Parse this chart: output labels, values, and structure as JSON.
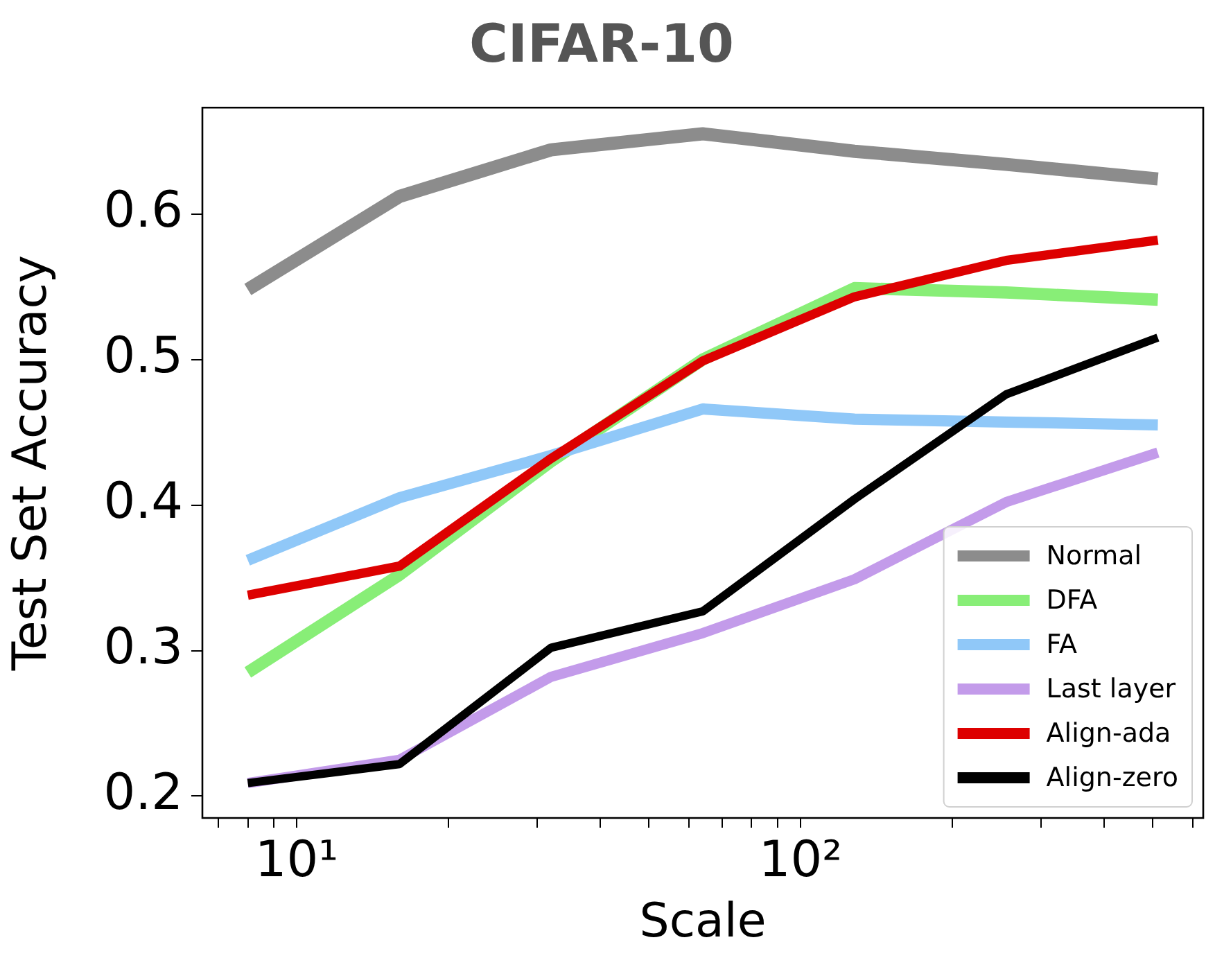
{
  "chart_data": {
    "type": "line",
    "title": "CIFAR-10",
    "xlabel": "Scale",
    "ylabel": "Test Set Accuracy",
    "x": [
      8,
      16,
      32,
      64,
      128,
      256,
      512
    ],
    "series": [
      {
        "name": "Normal",
        "color": "#8c8c8c",
        "values": [
          0.548,
          0.612,
          0.644,
          0.655,
          0.643,
          0.634,
          0.624
        ]
      },
      {
        "name": "DFA",
        "color": "#88ee77",
        "values": [
          0.285,
          0.352,
          0.43,
          0.5,
          0.549,
          0.546,
          0.541
        ]
      },
      {
        "name": "FA",
        "color": "#90c8f8",
        "values": [
          0.362,
          0.405,
          0.434,
          0.466,
          0.459,
          0.457,
          0.455
        ]
      },
      {
        "name": "Last layer",
        "color": "#c39bea",
        "values": [
          0.209,
          0.225,
          0.282,
          0.312,
          0.349,
          0.402,
          0.436
        ]
      },
      {
        "name": "Align-ada",
        "color": "#dd0000",
        "values": [
          0.338,
          0.358,
          0.432,
          0.499,
          0.543,
          0.568,
          0.582
        ]
      },
      {
        "name": "Align-zero",
        "color": "#000000",
        "values": [
          0.209,
          0.222,
          0.302,
          0.327,
          0.404,
          0.476,
          0.515
        ]
      }
    ],
    "log": "x",
    "xlim": [
      6.5,
      630
    ],
    "xticks": [
      {
        "value": 7,
        "label": null
      },
      {
        "value": 8,
        "label": null
      },
      {
        "value": 9,
        "label": null
      },
      {
        "value": 10,
        "label": "10¹"
      },
      {
        "value": 20,
        "label": null
      },
      {
        "value": 30,
        "label": null
      },
      {
        "value": 40,
        "label": null
      },
      {
        "value": 50,
        "label": null
      },
      {
        "value": 60,
        "label": null
      },
      {
        "value": 70,
        "label": null
      },
      {
        "value": 80,
        "label": null
      },
      {
        "value": 90,
        "label": null
      },
      {
        "value": 100,
        "label": "10²"
      },
      {
        "value": 200,
        "label": null
      },
      {
        "value": 300,
        "label": null
      },
      {
        "value": 400,
        "label": null
      },
      {
        "value": 500,
        "label": null
      },
      {
        "value": 600,
        "label": null
      }
    ],
    "ylim": [
      0.185,
      0.673
    ],
    "yticks": [
      0.2,
      0.3,
      0.4,
      0.5,
      0.6
    ],
    "grid": false,
    "legend": "bottom right",
    "marker": "none",
    "line_style": "solid"
  }
}
